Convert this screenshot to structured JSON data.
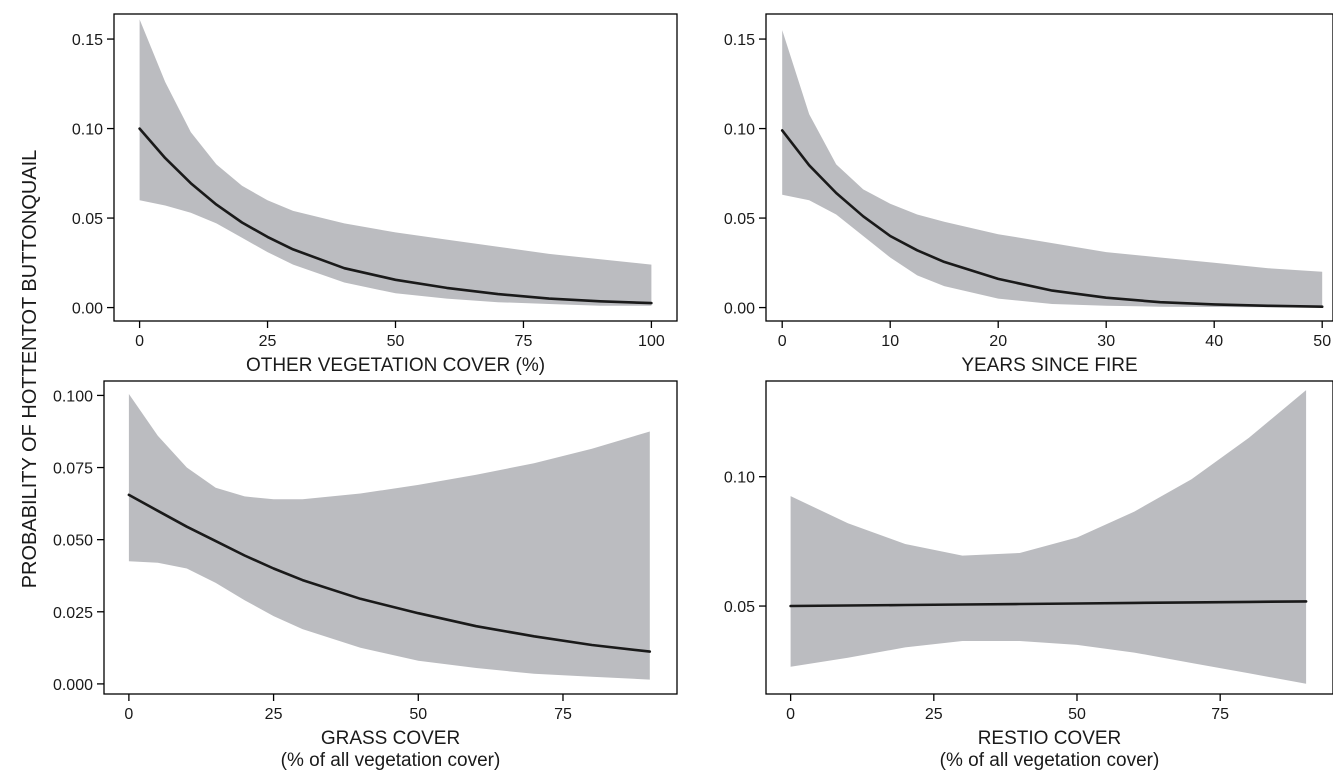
{
  "colors": {
    "band": "#bbbcc0",
    "line": "#1a1a1a",
    "axis": "#000000",
    "background": "#ffffff"
  },
  "y_axis_label": "PROBABILITY OF HOTTENTOT BUTTONQUAIL",
  "chart_data": [
    {
      "type": "line",
      "xlabel": [
        "OTHER VEGETATION COVER (%)"
      ],
      "xlim": [
        -5,
        105
      ],
      "ylim": [
        -0.0075,
        0.164
      ],
      "x_ticks": [
        0,
        25,
        50,
        75,
        100
      ],
      "x_tick_labels": [
        "0",
        "25",
        "50",
        "75",
        "100"
      ],
      "y_ticks": [
        0.0,
        0.05,
        0.1,
        0.15
      ],
      "y_tick_labels": [
        "0.00",
        "0.05",
        "0.10",
        "0.15"
      ],
      "series": [
        {
          "x": [
            0,
            5,
            10,
            15,
            20,
            25,
            30,
            40,
            50,
            60,
            70,
            80,
            90,
            100
          ],
          "y": [
            0.1,
            0.0835,
            0.0695,
            0.0575,
            0.0475,
            0.0395,
            0.0325,
            0.022,
            0.0155,
            0.011,
            0.0075,
            0.005,
            0.0035,
            0.0025
          ],
          "lower": [
            0.06,
            0.057,
            0.053,
            0.047,
            0.039,
            0.031,
            0.024,
            0.014,
            0.008,
            0.005,
            0.003,
            0.002,
            0.001,
            0.001
          ],
          "upper": [
            0.161,
            0.126,
            0.098,
            0.08,
            0.068,
            0.06,
            0.054,
            0.047,
            0.042,
            0.038,
            0.034,
            0.03,
            0.027,
            0.024
          ]
        }
      ]
    },
    {
      "type": "line",
      "xlabel": [
        "YEARS SINCE FIRE"
      ],
      "xlim": [
        -1.5,
        51
      ],
      "ylim": [
        -0.0075,
        0.164
      ],
      "x_ticks": [
        0,
        10,
        20,
        30,
        40,
        50
      ],
      "x_tick_labels": [
        "0",
        "10",
        "20",
        "30",
        "40",
        "50"
      ],
      "y_ticks": [
        0.0,
        0.05,
        0.1,
        0.15
      ],
      "y_tick_labels": [
        "0.00",
        "0.05",
        "0.10",
        "0.15"
      ],
      "series": [
        {
          "x": [
            0,
            2.5,
            5,
            7.5,
            10,
            12.5,
            15,
            20,
            25,
            30,
            35,
            40,
            45,
            50
          ],
          "y": [
            0.099,
            0.0795,
            0.064,
            0.051,
            0.04,
            0.032,
            0.0255,
            0.016,
            0.0095,
            0.0055,
            0.003,
            0.0018,
            0.001,
            0.0005
          ],
          "lower": [
            0.063,
            0.06,
            0.052,
            0.04,
            0.028,
            0.018,
            0.012,
            0.005,
            0.002,
            0.001,
            0.0005,
            0.0003,
            0.0002,
            0.0001
          ],
          "upper": [
            0.155,
            0.108,
            0.08,
            0.066,
            0.058,
            0.052,
            0.048,
            0.041,
            0.036,
            0.031,
            0.028,
            0.025,
            0.022,
            0.02
          ]
        }
      ]
    },
    {
      "type": "line",
      "xlabel": [
        "GRASS COVER",
        "(% of all vegetation cover)"
      ],
      "xlim": [
        -4.3,
        94.7
      ],
      "ylim": [
        -0.0035,
        0.105
      ],
      "x_ticks": [
        0,
        25,
        50,
        75
      ],
      "x_tick_labels": [
        "0",
        "25",
        "50",
        "75"
      ],
      "y_ticks": [
        0.0,
        0.025,
        0.05,
        0.075,
        0.1
      ],
      "y_tick_labels": [
        "0.000",
        "0.025",
        "0.050",
        "0.075",
        "0.100"
      ],
      "series": [
        {
          "x": [
            0,
            5,
            10,
            15,
            20,
            25,
            30,
            40,
            50,
            60,
            70,
            80,
            90
          ],
          "y": [
            0.0655,
            0.06,
            0.0545,
            0.0495,
            0.0445,
            0.04,
            0.036,
            0.0295,
            0.0245,
            0.02,
            0.0165,
            0.0135,
            0.0112
          ],
          "lower": [
            0.0425,
            0.042,
            0.04,
            0.035,
            0.029,
            0.0235,
            0.019,
            0.0125,
            0.008,
            0.0055,
            0.0035,
            0.0025,
            0.0015
          ],
          "upper": [
            0.1005,
            0.086,
            0.075,
            0.068,
            0.065,
            0.064,
            0.064,
            0.066,
            0.069,
            0.0725,
            0.0765,
            0.0815,
            0.0875
          ]
        }
      ]
    },
    {
      "type": "line",
      "xlabel": [
        "RESTIO COVER",
        "(% of all vegetation cover)"
      ],
      "xlim": [
        -4.3,
        94.7
      ],
      "ylim": [
        0.016,
        0.137
      ],
      "x_ticks": [
        0,
        25,
        50,
        75
      ],
      "x_tick_labels": [
        "0",
        "25",
        "50",
        "75"
      ],
      "y_ticks": [
        0.05,
        0.1
      ],
      "y_tick_labels": [
        "0.05",
        "0.10"
      ],
      "series": [
        {
          "x": [
            0,
            10,
            20,
            30,
            40,
            50,
            60,
            70,
            80,
            90
          ],
          "y": [
            0.05,
            0.0502,
            0.0504,
            0.0506,
            0.0508,
            0.051,
            0.0512,
            0.0514,
            0.0516,
            0.0518
          ],
          "lower": [
            0.0265,
            0.03,
            0.034,
            0.0365,
            0.0365,
            0.035,
            0.032,
            0.028,
            0.024,
            0.02
          ],
          "upper": [
            0.0925,
            0.082,
            0.074,
            0.0695,
            0.0705,
            0.0765,
            0.0865,
            0.099,
            0.115,
            0.1335
          ]
        }
      ]
    }
  ]
}
